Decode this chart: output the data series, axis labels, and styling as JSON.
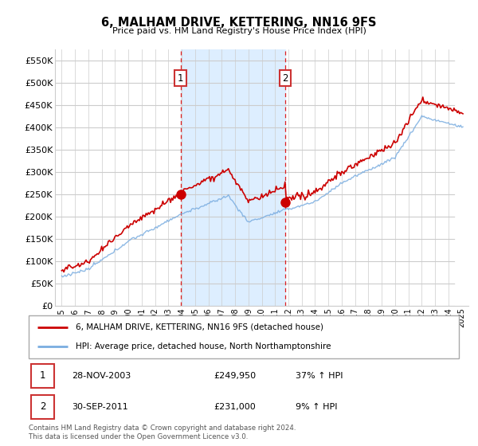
{
  "title": "6, MALHAM DRIVE, KETTERING, NN16 9FS",
  "subtitle": "Price paid vs. HM Land Registry's House Price Index (HPI)",
  "legend_line1": "6, MALHAM DRIVE, KETTERING, NN16 9FS (detached house)",
  "legend_line2": "HPI: Average price, detached house, North Northamptonshire",
  "sale1_label": "1",
  "sale1_date": "28-NOV-2003",
  "sale1_price": "£249,950",
  "sale1_hpi": "37% ↑ HPI",
  "sale1_year": 2003.92,
  "sale1_value": 249950,
  "sale2_label": "2",
  "sale2_date": "30-SEP-2011",
  "sale2_price": "£231,000",
  "sale2_hpi": "9% ↑ HPI",
  "sale2_year": 2011.75,
  "sale2_value": 231000,
  "footer": "Contains HM Land Registry data © Crown copyright and database right 2024.\nThis data is licensed under the Open Government Licence v3.0.",
  "ylim": [
    0,
    575000
  ],
  "yticks": [
    0,
    50000,
    100000,
    150000,
    200000,
    250000,
    300000,
    350000,
    400000,
    450000,
    500000,
    550000
  ],
  "xlim_start": 1994.5,
  "xlim_end": 2025.5,
  "red_color": "#cc0000",
  "blue_color": "#7aade0",
  "shaded_color": "#ddeeff",
  "grid_color": "#cccccc",
  "background_color": "#ffffff"
}
